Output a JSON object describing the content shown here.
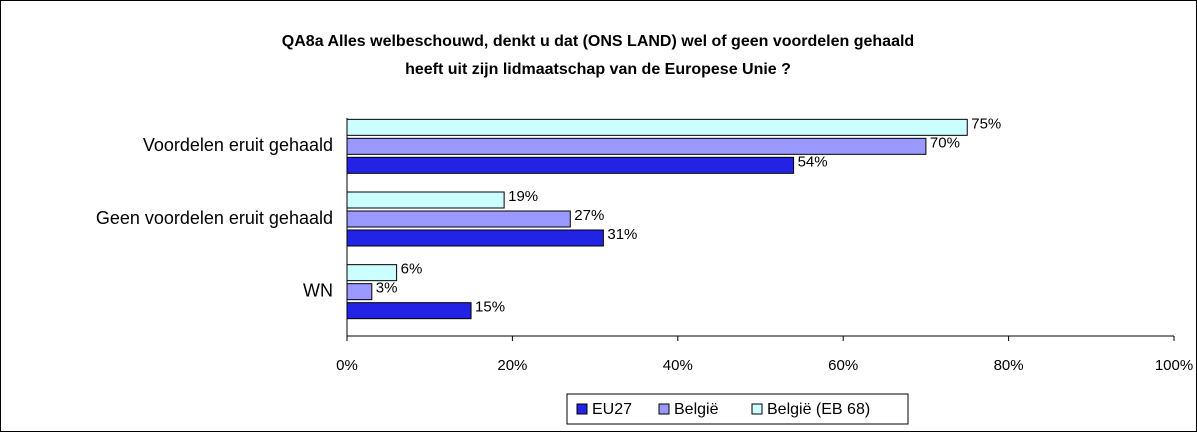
{
  "chart_data": {
    "type": "hbar",
    "title": [
      "QA8a Alles welbeschouwd, denkt u dat (ONS LAND) wel of geen voordelen gehaald",
      "heeft uit zijn lidmaatschap van de Europese Unie ?"
    ],
    "categories": [
      "Voordelen eruit gehaald",
      "Geen voordelen eruit gehaald",
      "WN"
    ],
    "series": [
      {
        "name": "EU27",
        "color": "#2323e6",
        "values": [
          54,
          31,
          15
        ],
        "value_labels": [
          "54%",
          "31%",
          "15%"
        ]
      },
      {
        "name": "België",
        "color": "#9999ff",
        "values": [
          70,
          27,
          3
        ],
        "value_labels": [
          "70%",
          "27%",
          "3%"
        ]
      },
      {
        "name": "België (EB 68)",
        "color": "#ccffff",
        "values": [
          75,
          19,
          6
        ],
        "value_labels": [
          "75%",
          "19%",
          "6%"
        ]
      }
    ],
    "xlim": [
      0,
      100
    ],
    "xticks": [
      {
        "value": 0,
        "label": "0%"
      },
      {
        "value": 20,
        "label": "20%"
      },
      {
        "value": 40,
        "label": "40%"
      },
      {
        "value": 60,
        "label": "60%"
      },
      {
        "value": 80,
        "label": "80%"
      },
      {
        "value": 100,
        "label": "100%"
      }
    ],
    "legend": "bottom"
  }
}
